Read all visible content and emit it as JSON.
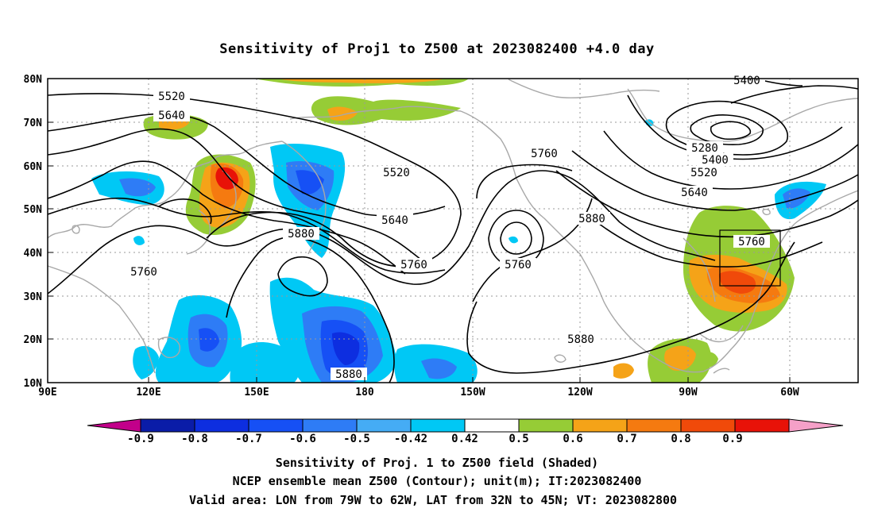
{
  "title": "Sensitivity of Proj1 to Z500 at 2023082400 +4.0 day",
  "map": {
    "lon_labels": [
      "90E",
      "120E",
      "150E",
      "180",
      "150W",
      "120W",
      "90W",
      "60W"
    ],
    "lat_labels": [
      "80N",
      "70N",
      "60N",
      "50N",
      "40N",
      "30N",
      "20N",
      "10N"
    ],
    "contour_labels": [
      "5520",
      "5640",
      "5520",
      "5640",
      "5760",
      "5880",
      "5760",
      "5760",
      "5760",
      "5880",
      "5880",
      "5880",
      "5400",
      "5280",
      "5400",
      "5520",
      "5640",
      "5760"
    ],
    "valid_box": {
      "lon_from": "79W",
      "lon_to": "62W",
      "lat_from": "32N",
      "lat_to": "45N"
    }
  },
  "colorbar": {
    "labels": [
      "-0.9",
      "-0.8",
      "-0.7",
      "-0.6",
      "-0.5",
      "-0.42",
      "0.42",
      "0.5",
      "0.6",
      "0.7",
      "0.8",
      "0.9"
    ],
    "colors": [
      "#c2008a",
      "#0a1ca8",
      "#0d2ee0",
      "#1650f5",
      "#2e7cf6",
      "#45acf5",
      "#00c8f5",
      "#ffffff",
      "#96cc36",
      "#f5a318",
      "#f57a10",
      "#f04a0a",
      "#e81208",
      "#f5a0c8"
    ]
  },
  "caption": {
    "line1": "Sensitivity of Proj. 1 to Z500 field (Shaded)",
    "line2": "NCEP ensemble mean Z500 (Contour); unit(m); IT:2023082400",
    "line3": "Valid area: LON from 79W to 62W, LAT from 32N to 45N; VT: 2023082800"
  }
}
